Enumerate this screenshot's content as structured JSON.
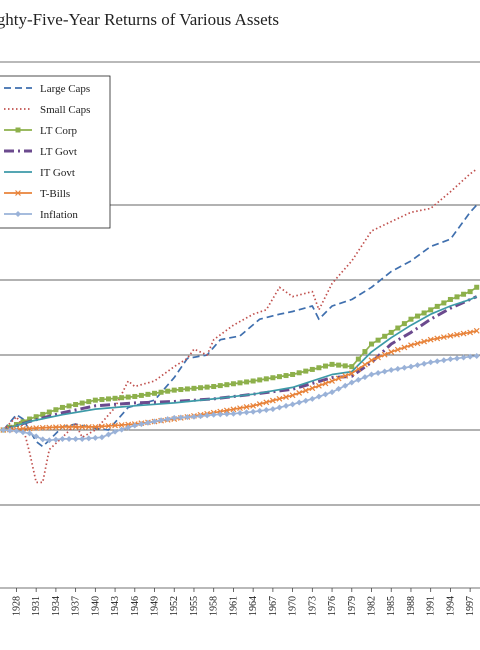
{
  "chart_data": {
    "type": "line",
    "title": "ighty-Five-Year Returns of Various Assets",
    "xlabel": "",
    "ylabel": "",
    "x_tick_labels": [
      "1928",
      "1931",
      "1934",
      "1937",
      "1940",
      "1943",
      "1946",
      "1949",
      "1952",
      "1955",
      "1958",
      "1961",
      "1964",
      "1967",
      "1970",
      "1973",
      "1976",
      "1979",
      "1982",
      "1985",
      "1988",
      "1991",
      "1994",
      "1997"
    ],
    "xlim": [
      1925.5,
      1998.5
    ],
    "yscale": "log",
    "grid": "horizontal",
    "legend_position": "top-left",
    "series": [
      {
        "name": "Large Caps",
        "color": "#3f6fae",
        "style": "dashed",
        "x": [
          1926,
          1928,
          1929,
          1931,
          1932,
          1935,
          1937,
          1940,
          1942,
          1945,
          1949,
          1952,
          1954,
          1957,
          1959,
          1962,
          1965,
          1968,
          1970,
          1973,
          1974,
          1976,
          1979,
          1982,
          1985,
          1988,
          1991,
          1994,
          1997,
          1998
        ],
        "y": [
          1.0,
          1.6,
          1.4,
          0.7,
          0.6,
          1.1,
          1.2,
          1.05,
          1.0,
          2.0,
          2.5,
          5.0,
          9.0,
          10.0,
          16.0,
          18.0,
          30.0,
          35.0,
          38.0,
          45.0,
          30.0,
          45.0,
          55.0,
          80.0,
          130.0,
          180.0,
          280.0,
          350.0,
          800.0,
          1000.0
        ]
      },
      {
        "name": "Small Caps",
        "color": "#c0504d",
        "style": "dotted",
        "x": [
          1926,
          1928,
          1929,
          1930,
          1931,
          1932,
          1933,
          1935,
          1937,
          1938,
          1940,
          1943,
          1945,
          1946,
          1949,
          1952,
          1954,
          1955,
          1957,
          1958,
          1961,
          1964,
          1966,
          1968,
          1970,
          1973,
          1974,
          1976,
          1979,
          1982,
          1985,
          1988,
          1991,
          1994,
          1997,
          1998
        ],
        "y": [
          1.0,
          1.5,
          1.1,
          0.5,
          0.2,
          0.2,
          0.55,
          0.8,
          1.2,
          0.8,
          1.0,
          2.0,
          4.5,
          3.8,
          4.5,
          7.0,
          9.0,
          12.0,
          10.0,
          16.0,
          25.0,
          35.0,
          40.0,
          80.0,
          60.0,
          70.0,
          40.0,
          90.0,
          180.0,
          450.0,
          600.0,
          800.0,
          900.0,
          1500.0,
          2600.0,
          3000.0
        ]
      },
      {
        "name": "LT Corp",
        "color": "#8db04b",
        "style": "square",
        "x": [
          1926,
          1930,
          1935,
          1940,
          1946,
          1952,
          1958,
          1964,
          1970,
          1976,
          1979,
          1982,
          1985,
          1988,
          1991,
          1994,
          1997,
          1998
        ],
        "y": [
          1.0,
          1.4,
          2.0,
          2.5,
          2.8,
          3.4,
          3.8,
          4.5,
          5.5,
          7.5,
          7.0,
          14.0,
          20.0,
          30.0,
          40.0,
          55.0,
          70.0,
          80.0
        ]
      },
      {
        "name": "LT Govt",
        "color": "#6b4a8e",
        "style": "dash-dot",
        "x": [
          1926,
          1930,
          1935,
          1940,
          1946,
          1952,
          1958,
          1964,
          1970,
          1976,
          1979,
          1982,
          1985,
          1988,
          1991,
          1994,
          1997,
          1998
        ],
        "y": [
          1.0,
          1.3,
          1.7,
          2.1,
          2.3,
          2.4,
          2.6,
          3.0,
          3.5,
          5.0,
          5.2,
          8.0,
          14.0,
          20.0,
          30.0,
          42.0,
          55.0,
          60.0
        ]
      },
      {
        "name": "IT Govt",
        "color": "#3d9aa8",
        "style": "solid",
        "x": [
          1926,
          1930,
          1935,
          1940,
          1946,
          1952,
          1958,
          1964,
          1970,
          1976,
          1979,
          1982,
          1985,
          1988,
          1991,
          1994,
          1997,
          1998
        ],
        "y": [
          1.0,
          1.3,
          1.6,
          1.9,
          2.1,
          2.3,
          2.6,
          3.0,
          3.7,
          5.5,
          6.0,
          11.0,
          17.0,
          25.0,
          35.0,
          45.0,
          55.0,
          60.0
        ]
      },
      {
        "name": "T-Bills",
        "color": "#e8833a",
        "style": "x-marker",
        "x": [
          1926,
          1930,
          1935,
          1940,
          1946,
          1952,
          1958,
          1964,
          1970,
          1976,
          1979,
          1982,
          1985,
          1988,
          1991,
          1994,
          1997,
          1998
        ],
        "y": [
          1.0,
          1.05,
          1.1,
          1.1,
          1.2,
          1.4,
          1.7,
          2.1,
          2.9,
          4.5,
          5.7,
          8.5,
          11.0,
          13.5,
          16.0,
          18.0,
          20.0,
          21.0
        ]
      },
      {
        "name": "Inflation",
        "color": "#9ab2d8",
        "style": "diamond",
        "x": [
          1926,
          1928,
          1930,
          1932,
          1933,
          1935,
          1938,
          1941,
          1943,
          1946,
          1949,
          1952,
          1955,
          1958,
          1961,
          1964,
          1967,
          1970,
          1973,
          1976,
          1979,
          1982,
          1985,
          1988,
          1991,
          1994,
          1997,
          1998
        ],
        "y": [
          1.0,
          0.97,
          0.9,
          0.75,
          0.73,
          0.76,
          0.76,
          0.8,
          0.95,
          1.15,
          1.3,
          1.45,
          1.5,
          1.6,
          1.65,
          1.75,
          1.9,
          2.2,
          2.6,
          3.2,
          4.3,
          5.5,
          6.3,
          7.0,
          8.0,
          8.8,
          9.5,
          9.7
        ]
      }
    ]
  }
}
